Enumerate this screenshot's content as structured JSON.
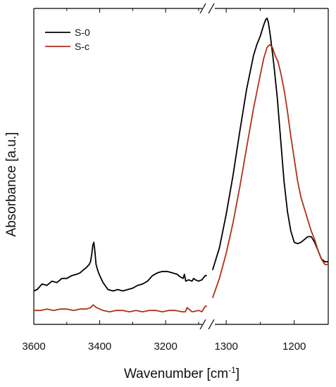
{
  "chart_data": {
    "type": "line",
    "title": "",
    "xlabel": "Wavenumber [cm",
    "xlabel_superscript": "-1",
    "xlabel_suffix": "]",
    "ylabel": "Absorbance [a.u.]",
    "x_axis_reversed": true,
    "x_axis_break": true,
    "y_ticks_labeled": false,
    "grid": false,
    "legend_position": "top-left",
    "panels": [
      {
        "xlim": [
          3600,
          3070
        ],
        "ticks": [
          3600,
          3400,
          3200
        ]
      },
      {
        "xlim": [
          1325,
          1150
        ],
        "ticks": [
          1300,
          1200
        ]
      }
    ],
    "ylim": [
      0,
      1
    ],
    "series": [
      {
        "name": "S-0",
        "color": "#000000",
        "panel1": {
          "x": [
            3600,
            3590,
            3575,
            3560,
            3545,
            3530,
            3515,
            3500,
            3485,
            3470,
            3460,
            3450,
            3440,
            3432,
            3428,
            3424,
            3421,
            3418,
            3415,
            3411,
            3405,
            3400,
            3390,
            3375,
            3360,
            3345,
            3330,
            3315,
            3300,
            3285,
            3270,
            3255,
            3240,
            3225,
            3210,
            3195,
            3180,
            3165,
            3155,
            3147,
            3143,
            3139,
            3130,
            3120,
            3115,
            3110,
            3100,
            3090,
            3080,
            3075
          ],
          "y": [
            0.105,
            0.11,
            0.13,
            0.125,
            0.14,
            0.135,
            0.15,
            0.15,
            0.16,
            0.165,
            0.17,
            0.18,
            0.19,
            0.2,
            0.21,
            0.24,
            0.27,
            0.28,
            0.25,
            0.2,
            0.175,
            0.16,
            0.135,
            0.11,
            0.105,
            0.11,
            0.105,
            0.11,
            0.115,
            0.125,
            0.13,
            0.14,
            0.16,
            0.17,
            0.175,
            0.175,
            0.17,
            0.165,
            0.155,
            0.15,
            0.165,
            0.14,
            0.145,
            0.14,
            0.15,
            0.145,
            0.14,
            0.145,
            0.16,
            0.16
          ]
        },
        "panel2": {
          "x": [
            1320,
            1310,
            1300,
            1290,
            1280,
            1270,
            1260,
            1255,
            1250,
            1245,
            1242,
            1240,
            1238,
            1235,
            1230,
            1225,
            1220,
            1215,
            1210,
            1205,
            1200,
            1195,
            1190,
            1185,
            1180,
            1175,
            1170,
            1165,
            1160,
            1155,
            1150
          ],
          "y": [
            0.18,
            0.26,
            0.38,
            0.52,
            0.68,
            0.83,
            0.95,
            0.99,
            1.02,
            1.06,
            1.08,
            1.085,
            1.07,
            1.02,
            0.92,
            0.8,
            0.65,
            0.5,
            0.39,
            0.32,
            0.28,
            0.275,
            0.28,
            0.29,
            0.3,
            0.3,
            0.28,
            0.25,
            0.22,
            0.21,
            0.21
          ]
        }
      },
      {
        "name": "S-c",
        "color": "#b03018",
        "panel1": {
          "x": [
            3600,
            3580,
            3560,
            3540,
            3520,
            3500,
            3480,
            3460,
            3440,
            3428,
            3420,
            3415,
            3410,
            3400,
            3390,
            3370,
            3350,
            3330,
            3310,
            3290,
            3270,
            3250,
            3230,
            3210,
            3190,
            3170,
            3150,
            3140,
            3135,
            3120,
            3100,
            3090,
            3080,
            3075
          ],
          "y": [
            0.035,
            0.035,
            0.04,
            0.035,
            0.04,
            0.04,
            0.035,
            0.04,
            0.04,
            0.045,
            0.055,
            0.05,
            0.045,
            0.04,
            0.035,
            0.03,
            0.035,
            0.035,
            0.03,
            0.035,
            0.03,
            0.035,
            0.035,
            0.03,
            0.035,
            0.035,
            0.03,
            0.03,
            0.045,
            0.03,
            0.035,
            0.03,
            0.05,
            0.05
          ]
        },
        "panel2": {
          "x": [
            1320,
            1310,
            1300,
            1290,
            1280,
            1270,
            1260,
            1250,
            1245,
            1240,
            1236,
            1232,
            1228,
            1224,
            1220,
            1215,
            1210,
            1205,
            1200,
            1195,
            1190,
            1185,
            1180,
            1175,
            1170,
            1165,
            1160,
            1155,
            1150
          ],
          "y": [
            0.08,
            0.15,
            0.24,
            0.35,
            0.48,
            0.62,
            0.76,
            0.88,
            0.94,
            0.98,
            0.99,
            0.98,
            0.95,
            0.93,
            0.89,
            0.83,
            0.75,
            0.66,
            0.58,
            0.5,
            0.44,
            0.4,
            0.36,
            0.32,
            0.29,
            0.25,
            0.22,
            0.2,
            0.2
          ]
        }
      }
    ]
  }
}
